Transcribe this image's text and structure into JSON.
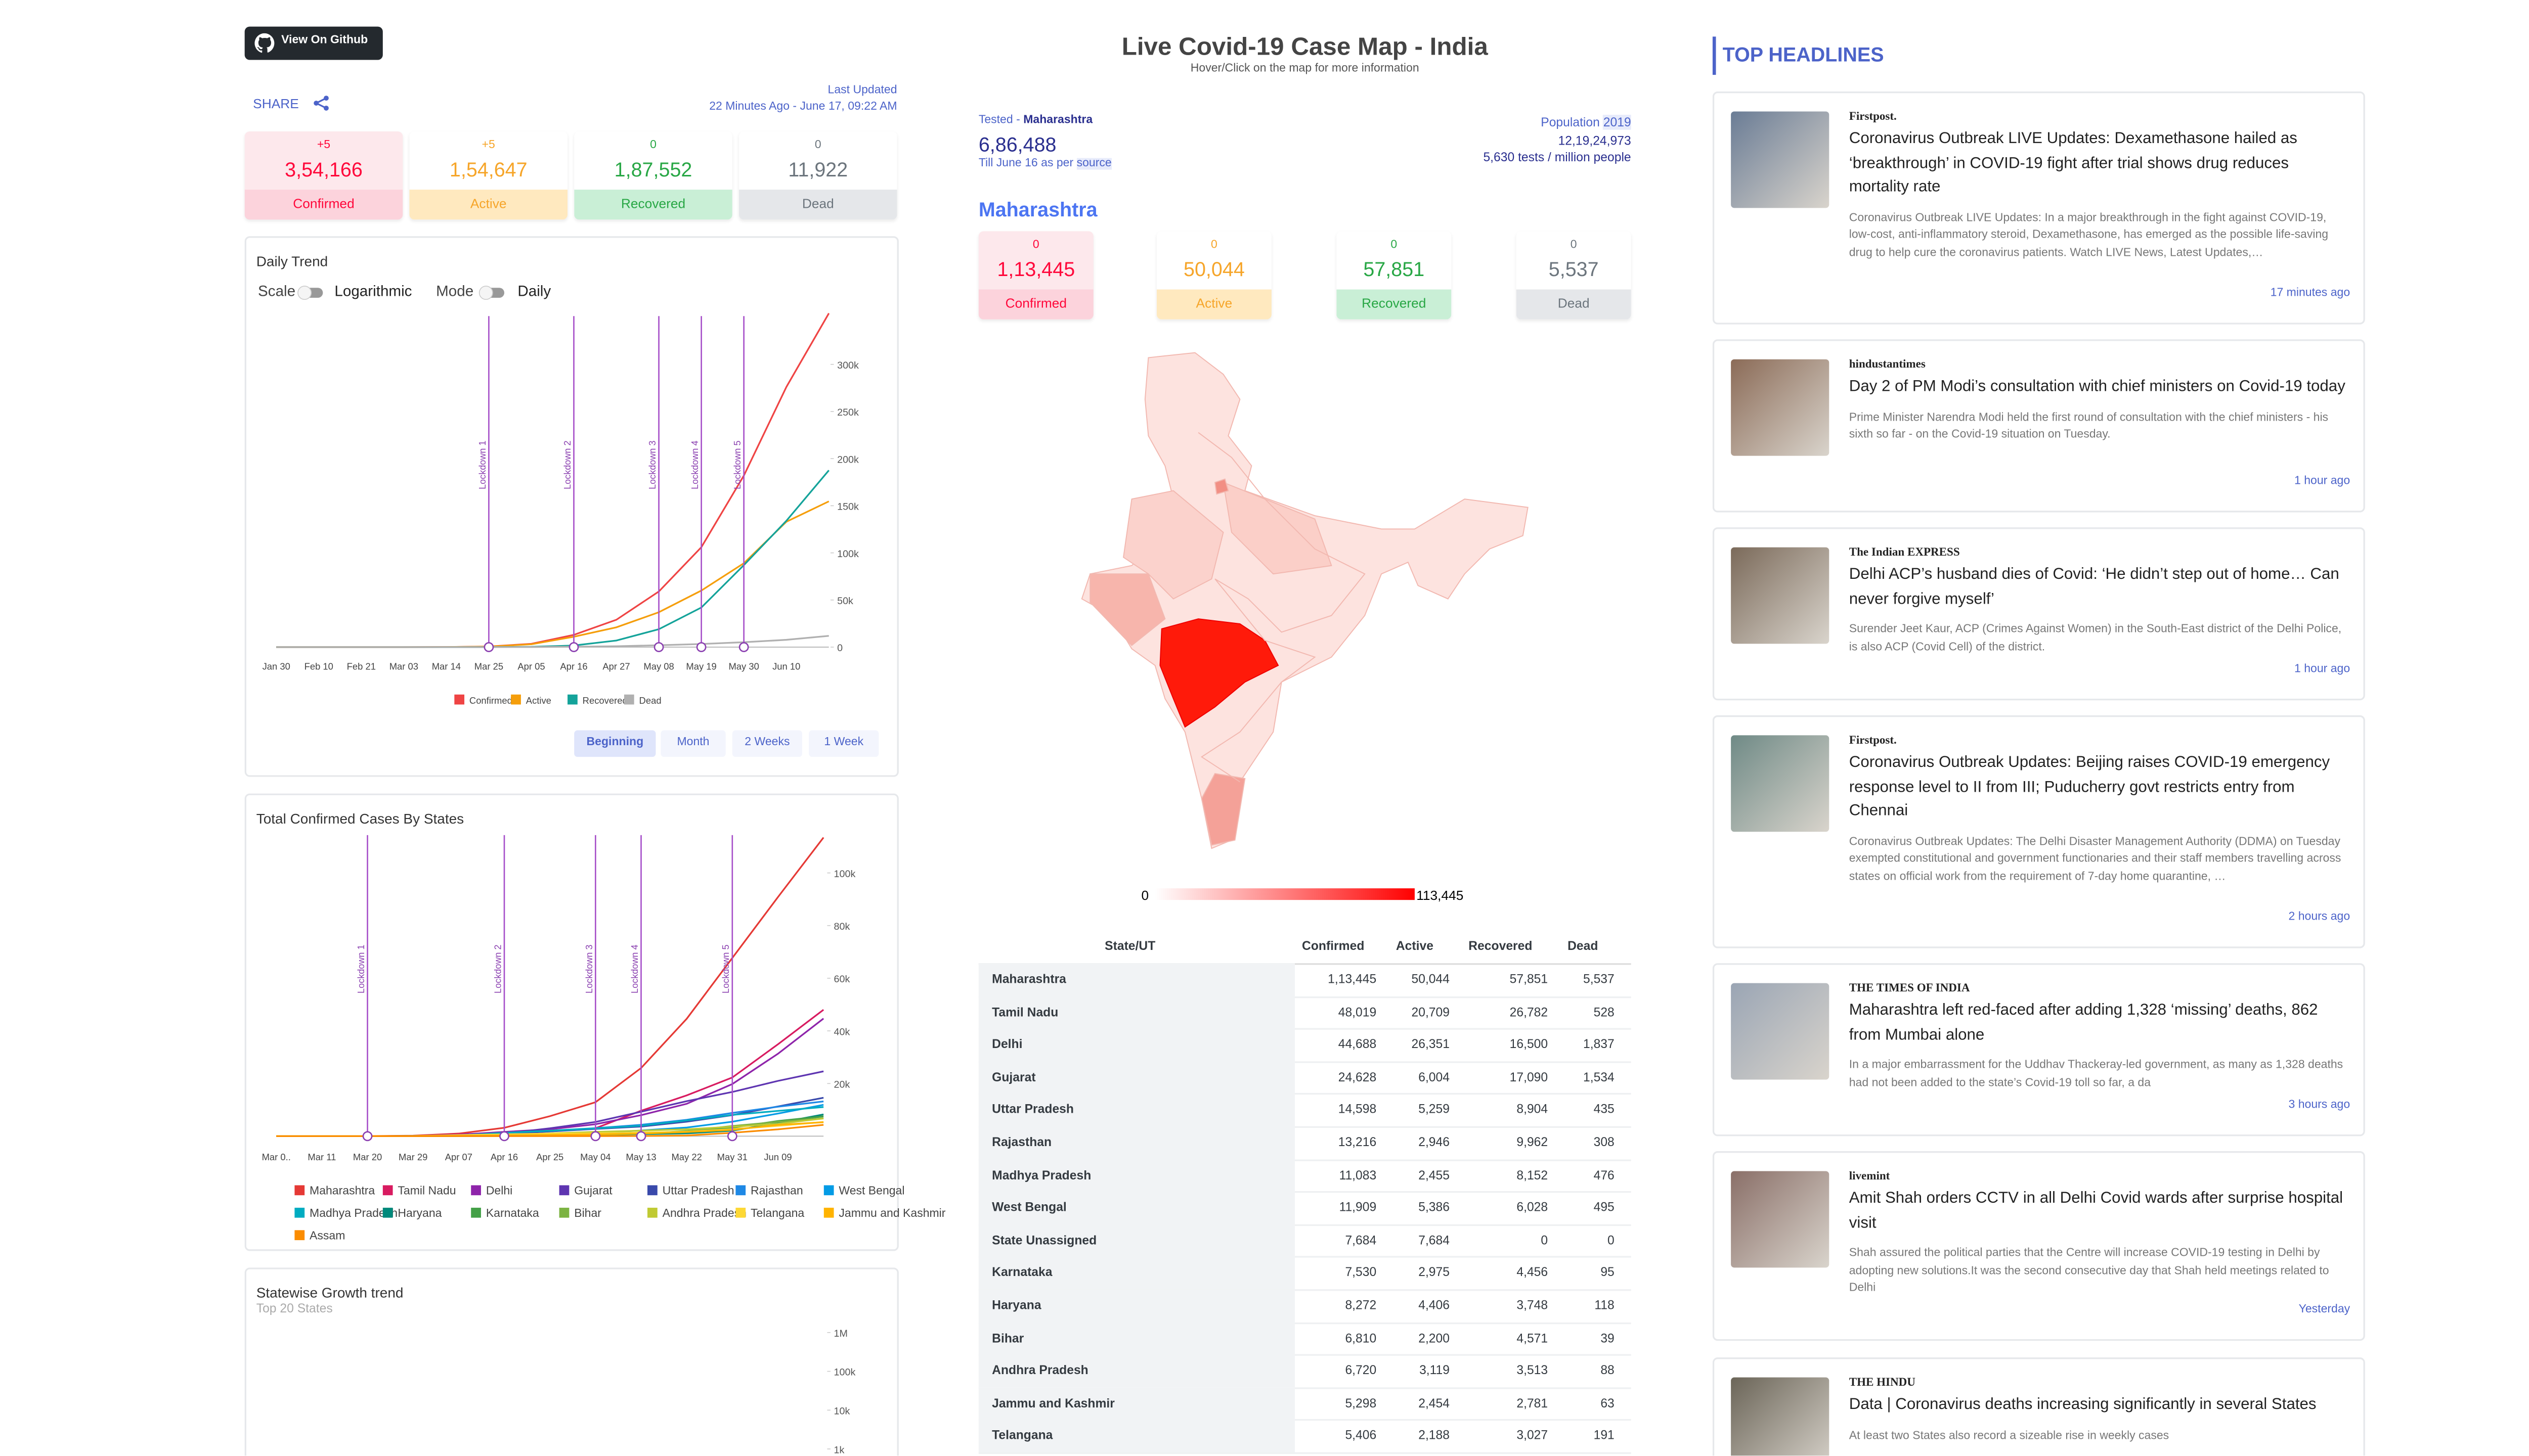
{
  "header": {
    "github": "View On Github",
    "share": "SHARE",
    "last_updated_label": "Last Updated",
    "last_updated": "22 Minutes Ago - June 17, 09:22 AM",
    "title": "Live Covid-19 Case Map - India",
    "subtitle": "Hover/Click on the map for more information"
  },
  "summary": [
    {
      "delta": "+5",
      "value": "3,54,166",
      "label": "Confirmed"
    },
    {
      "delta": "+5",
      "value": "1,54,647",
      "label": "Active"
    },
    {
      "delta": "0",
      "value": "1,87,552",
      "label": "Recovered"
    },
    {
      "delta": "0",
      "value": "11,922",
      "label": "Dead"
    }
  ],
  "tested": {
    "label": "Tested",
    "state": "Maharashtra",
    "value": "6,86,488",
    "note": "Till June 16 as per",
    "source": "source",
    "population_label": "Population",
    "population_year": "2019",
    "population": "12,19,24,973",
    "per_million": "5,630 tests / million people"
  },
  "state": {
    "name": "Maharashtra",
    "cards": [
      {
        "delta": "0",
        "value": "1,13,445",
        "label": "Confirmed"
      },
      {
        "delta": "0",
        "value": "50,044",
        "label": "Active"
      },
      {
        "delta": "0",
        "value": "57,851",
        "label": "Recovered"
      },
      {
        "delta": "0",
        "value": "5,537",
        "label": "Dead"
      }
    ]
  },
  "map_legend": {
    "min": "0",
    "max": "113,445"
  },
  "table": {
    "headers": [
      "State/UT",
      "Confirmed",
      "Active",
      "Recovered",
      "Dead"
    ],
    "rows": [
      [
        "Maharashtra",
        "1,13,445",
        "50,044",
        "57,851",
        "5,537"
      ],
      [
        "Tamil Nadu",
        "48,019",
        "20,709",
        "26,782",
        "528"
      ],
      [
        "Delhi",
        "44,688",
        "26,351",
        "16,500",
        "1,837"
      ],
      [
        "Gujarat",
        "24,628",
        "6,004",
        "17,090",
        "1,534"
      ],
      [
        "Uttar Pradesh",
        "14,598",
        "5,259",
        "8,904",
        "435"
      ],
      [
        "Rajasthan",
        "13,216",
        "2,946",
        "9,962",
        "308"
      ],
      [
        "Madhya Pradesh",
        "11,083",
        "2,455",
        "8,152",
        "476"
      ],
      [
        "West Bengal",
        "11,909",
        "5,386",
        "6,028",
        "495"
      ],
      [
        "State Unassigned",
        "7,684",
        "7,684",
        "0",
        "0"
      ],
      [
        "Karnataka",
        "7,530",
        "2,975",
        "4,456",
        "95"
      ],
      [
        "Haryana",
        "8,272",
        "4,406",
        "3,748",
        "118"
      ],
      [
        "Bihar",
        "6,810",
        "2,200",
        "4,571",
        "39"
      ],
      [
        "Andhra Pradesh",
        "6,720",
        "3,119",
        "3,513",
        "88"
      ],
      [
        "Jammu and Kashmir",
        "5,298",
        "2,454",
        "2,781",
        "63"
      ],
      [
        "Telangana",
        "5,406",
        "2,188",
        "3,027",
        "191"
      ]
    ]
  },
  "headlines": {
    "title": "TOP HEADLINES",
    "items": [
      {
        "source": "Firstpost.",
        "title": "Coronavirus Outbreak LIVE Updates: Dexamethasone hailed as ‘breakthrough’ in COVID-19 fight after trial shows drug reduces mortality rate",
        "text": "Coronavirus Outbreak LIVE Updates: In a major breakthrough in the fight against COVID-19, low-cost, anti-inflammatory steroid, Dexamethasone, has emerged as the possible life-saving drug to help cure the coronavirus patients. Watch LIVE News, Latest Updates,…",
        "time": "17 minutes ago"
      },
      {
        "source": "hindustantimes",
        "title": "Day 2 of PM Modi’s consultation with chief ministers on Covid-19 today",
        "text": "Prime Minister Narendra Modi held the first round of consultation with the chief ministers - his sixth so far - on the Covid-19 situation on Tuesday.",
        "time": "1 hour ago"
      },
      {
        "source": "The Indian EXPRESS",
        "title": "Delhi ACP’s husband dies of Covid: ‘He didn’t step out of home… Can never forgive myself’",
        "text": "Surender Jeet Kaur, ACP (Crimes Against Women) in the South-East district of the Delhi Police, is also ACP (Covid Cell) of the district.",
        "time": "1 hour ago"
      },
      {
        "source": "Firstpost.",
        "title": "Coronavirus Outbreak Updates: Beijing raises COVID-19 emergency response level to II from III; Puducherry govt restricts entry from Chennai",
        "text": "Coronavirus Outbreak Updates: The Delhi Disaster Management Authority (DDMA) on Tuesday exempted constitutional and government functionaries and their staff members travelling across states on official work from the requirement of 7-day home quarantine, …",
        "time": "2 hours ago"
      },
      {
        "source": "THE TIMES OF INDIA",
        "title": "Maharashtra left red-faced after adding 1,328 ‘missing’ deaths, 862 from Mumbai alone",
        "text": "In a major embarrassment for the Uddhav Thackeray-led government, as many as 1,328 deaths had not been added to the state’s Covid-19 toll so far, a da",
        "time": "3 hours ago"
      },
      {
        "source": "livemint",
        "title": "Amit Shah orders CCTV in all Delhi Covid wards after surprise hospital visit",
        "text": "Shah assured the political parties that the Centre will increase COVID-19 testing in Delhi by adopting new solutions.It was the second consecutive day that Shah held meetings related to Delhi",
        "time": "Yesterday"
      },
      {
        "source": "THE HINDU",
        "title": "Data | Coronavirus deaths increasing significantly in several States",
        "text": "At least two States also record a sizeable rise in weekly cases"
      }
    ]
  },
  "chart_data": [
    {
      "type": "line",
      "title": "Daily Trend",
      "controls": [
        "Scale",
        "Logarithmic",
        "Mode",
        "Daily"
      ],
      "buttons": [
        "Beginning",
        "Month",
        "2 Weeks",
        "1 Week"
      ],
      "categories": [
        "Jan 30",
        "Feb 10",
        "Feb 21",
        "Mar 03",
        "Mar 14",
        "Mar 25",
        "Apr 05",
        "Apr 16",
        "Apr 27",
        "May 08",
        "May 19",
        "May 30",
        "Jun 10",
        null
      ],
      "series": [
        {
          "name": "Confirmed",
          "color": "#ef4444",
          "values": [
            0,
            0,
            3,
            5,
            100,
            650,
            3500,
            13000,
            29000,
            59000,
            106000,
            182000,
            276000,
            354166
          ]
        },
        {
          "name": "Active",
          "color": "#f59e0b",
          "values": [
            0,
            0,
            3,
            5,
            90,
            560,
            3000,
            11000,
            21000,
            37000,
            60000,
            89000,
            133000,
            154647
          ]
        },
        {
          "name": "Recovered",
          "color": "#14a39a",
          "values": [
            0,
            0,
            0,
            0,
            10,
            45,
            300,
            1700,
            7000,
            19000,
            42000,
            87000,
            134000,
            187552
          ]
        },
        {
          "name": "Dead",
          "color": "#b0b0b0",
          "values": [
            0,
            0,
            0,
            0,
            2,
            12,
            100,
            420,
            900,
            1980,
            3300,
            5200,
            7750,
            11922
          ]
        }
      ],
      "ylim": [
        0,
        350000
      ],
      "yticks": [
        0,
        {
          "value": 50000,
          "label": "50k"
        },
        {
          "value": 100000,
          "label": "100k"
        },
        {
          "value": 150000,
          "label": "150k"
        },
        {
          "value": 200000,
          "label": "200k"
        },
        {
          "value": 250000,
          "label": "250k"
        },
        {
          "value": 300000,
          "label": "300k"
        }
      ],
      "annotations": [
        {
          "text": "Lockdown 1",
          "x": "Mar 25"
        },
        {
          "text": "Lockdown 2",
          "x": "Apr 16"
        },
        {
          "text": "Lockdown 3",
          "x": "May 08"
        },
        {
          "text": "Lockdown 4",
          "x": "May 19"
        },
        {
          "text": "Lockdown 5",
          "x": "May 30"
        }
      ]
    },
    {
      "type": "line",
      "title": "Total Confirmed Cases By States",
      "categories": [
        "Mar 0..",
        "Mar 11",
        "Mar 20",
        "Mar 29",
        "Apr 07",
        "Apr 16",
        "Apr 25",
        "May 04",
        "May 13",
        "May 22",
        "May 31",
        "Jun 09",
        null
      ],
      "series": [
        {
          "name": "Maharashtra",
          "color": "#e53935",
          "values": [
            0,
            10,
            50,
            200,
            1000,
            3200,
            7600,
            12900,
            25900,
            44600,
            67700,
            90800,
            113445
          ]
        },
        {
          "name": "Tamil Nadu",
          "color": "#d81b60",
          "values": [
            0,
            1,
            3,
            50,
            690,
            1270,
            1820,
            3020,
            9670,
            15500,
            22300,
            34900,
            48019
          ]
        },
        {
          "name": "Delhi",
          "color": "#8e24aa",
          "values": [
            0,
            4,
            20,
            50,
            580,
            1640,
            2620,
            4550,
            7990,
            12300,
            19800,
            31300,
            44688
          ]
        },
        {
          "name": "Gujarat",
          "color": "#5e35b1",
          "values": [
            0,
            0,
            5,
            60,
            150,
            1000,
            3000,
            5400,
            9300,
            13300,
            16800,
            21000,
            24628
          ]
        },
        {
          "name": "Uttar Pradesh",
          "color": "#3949ab",
          "values": [
            0,
            10,
            20,
            70,
            330,
            850,
            1800,
            2760,
            3670,
            5500,
            8000,
            11300,
            14598
          ]
        },
        {
          "name": "Rajasthan",
          "color": "#1e88e5",
          "values": [
            0,
            2,
            20,
            70,
            330,
            1230,
            2080,
            3060,
            4330,
            6230,
            8830,
            11200,
            13216
          ]
        },
        {
          "name": "West Bengal",
          "color": "#039be5",
          "values": [
            0,
            0,
            5,
            20,
            100,
            240,
            610,
            1260,
            2170,
            3300,
            5500,
            8600,
            11909
          ]
        },
        {
          "name": "Madhya Pradesh",
          "color": "#00acc1",
          "values": [
            0,
            0,
            5,
            50,
            230,
            1300,
            2100,
            2940,
            4000,
            5980,
            8090,
            9600,
            11083
          ]
        },
        {
          "name": "Haryana",
          "color": "#00897b",
          "values": [
            0,
            10,
            20,
            30,
            140,
            210,
            280,
            540,
            780,
            1070,
            2090,
            5000,
            8272
          ]
        },
        {
          "name": "Karnataka",
          "color": "#43a047",
          "values": [
            0,
            5,
            15,
            80,
            180,
            320,
            480,
            650,
            960,
            1740,
            3220,
            5760,
            7530
          ]
        },
        {
          "name": "Bihar",
          "color": "#7cb342",
          "values": [
            0,
            0,
            2,
            10,
            30,
            80,
            220,
            500,
            940,
            2000,
            3870,
            5450,
            6810
          ]
        },
        {
          "name": "Andhra Pradesh",
          "color": "#c0ca33",
          "values": [
            0,
            0,
            3,
            20,
            300,
            540,
            1060,
            1650,
            2090,
            2650,
            3570,
            4700,
            6720
          ]
        },
        {
          "name": "Telangana",
          "color": "#fdd835",
          "values": [
            0,
            1,
            20,
            70,
            400,
            700,
            990,
            1080,
            1360,
            1700,
            2700,
            3920,
            5406
          ]
        },
        {
          "name": "Jammu and Kashmir",
          "color": "#ffb300",
          "values": [
            0,
            1,
            4,
            40,
            120,
            300,
            500,
            720,
            1000,
            1600,
            2400,
            4300,
            5298
          ]
        },
        {
          "name": "Assam",
          "color": "#fb8c00",
          "values": [
            0,
            0,
            0,
            1,
            30,
            35,
            36,
            43,
            80,
            260,
            1300,
            2600,
            4300
          ]
        }
      ],
      "ylim": [
        0,
        115000
      ],
      "yticks": [
        {
          "value": 20000,
          "label": "20k"
        },
        {
          "value": 40000,
          "label": "40k"
        },
        {
          "value": 60000,
          "label": "60k"
        },
        {
          "value": 80000,
          "label": "80k"
        },
        {
          "value": 100000,
          "label": "100k"
        }
      ],
      "annotations": [
        {
          "text": "Lockdown 1",
          "x": "Mar 20"
        },
        {
          "text": "Lockdown 2",
          "x": "Apr 16"
        },
        {
          "text": "Lockdown 3",
          "x": "May 04"
        },
        {
          "text": "Lockdown 4",
          "x": "May 13"
        },
        {
          "text": "Lockdown 5",
          "x": "May 31"
        }
      ]
    },
    {
      "type": "line",
      "title": "Statewise Growth trend",
      "subtitle": "Top 20 States",
      "log_scale": true,
      "ylim": [
        1000,
        2000000
      ],
      "yticks": [
        {
          "value": 1000,
          "label": "1k"
        },
        {
          "value": 10000,
          "label": "10k"
        },
        {
          "value": 100000,
          "label": "100k"
        },
        {
          "value": 1000000,
          "label": "1M"
        }
      ]
    }
  ]
}
